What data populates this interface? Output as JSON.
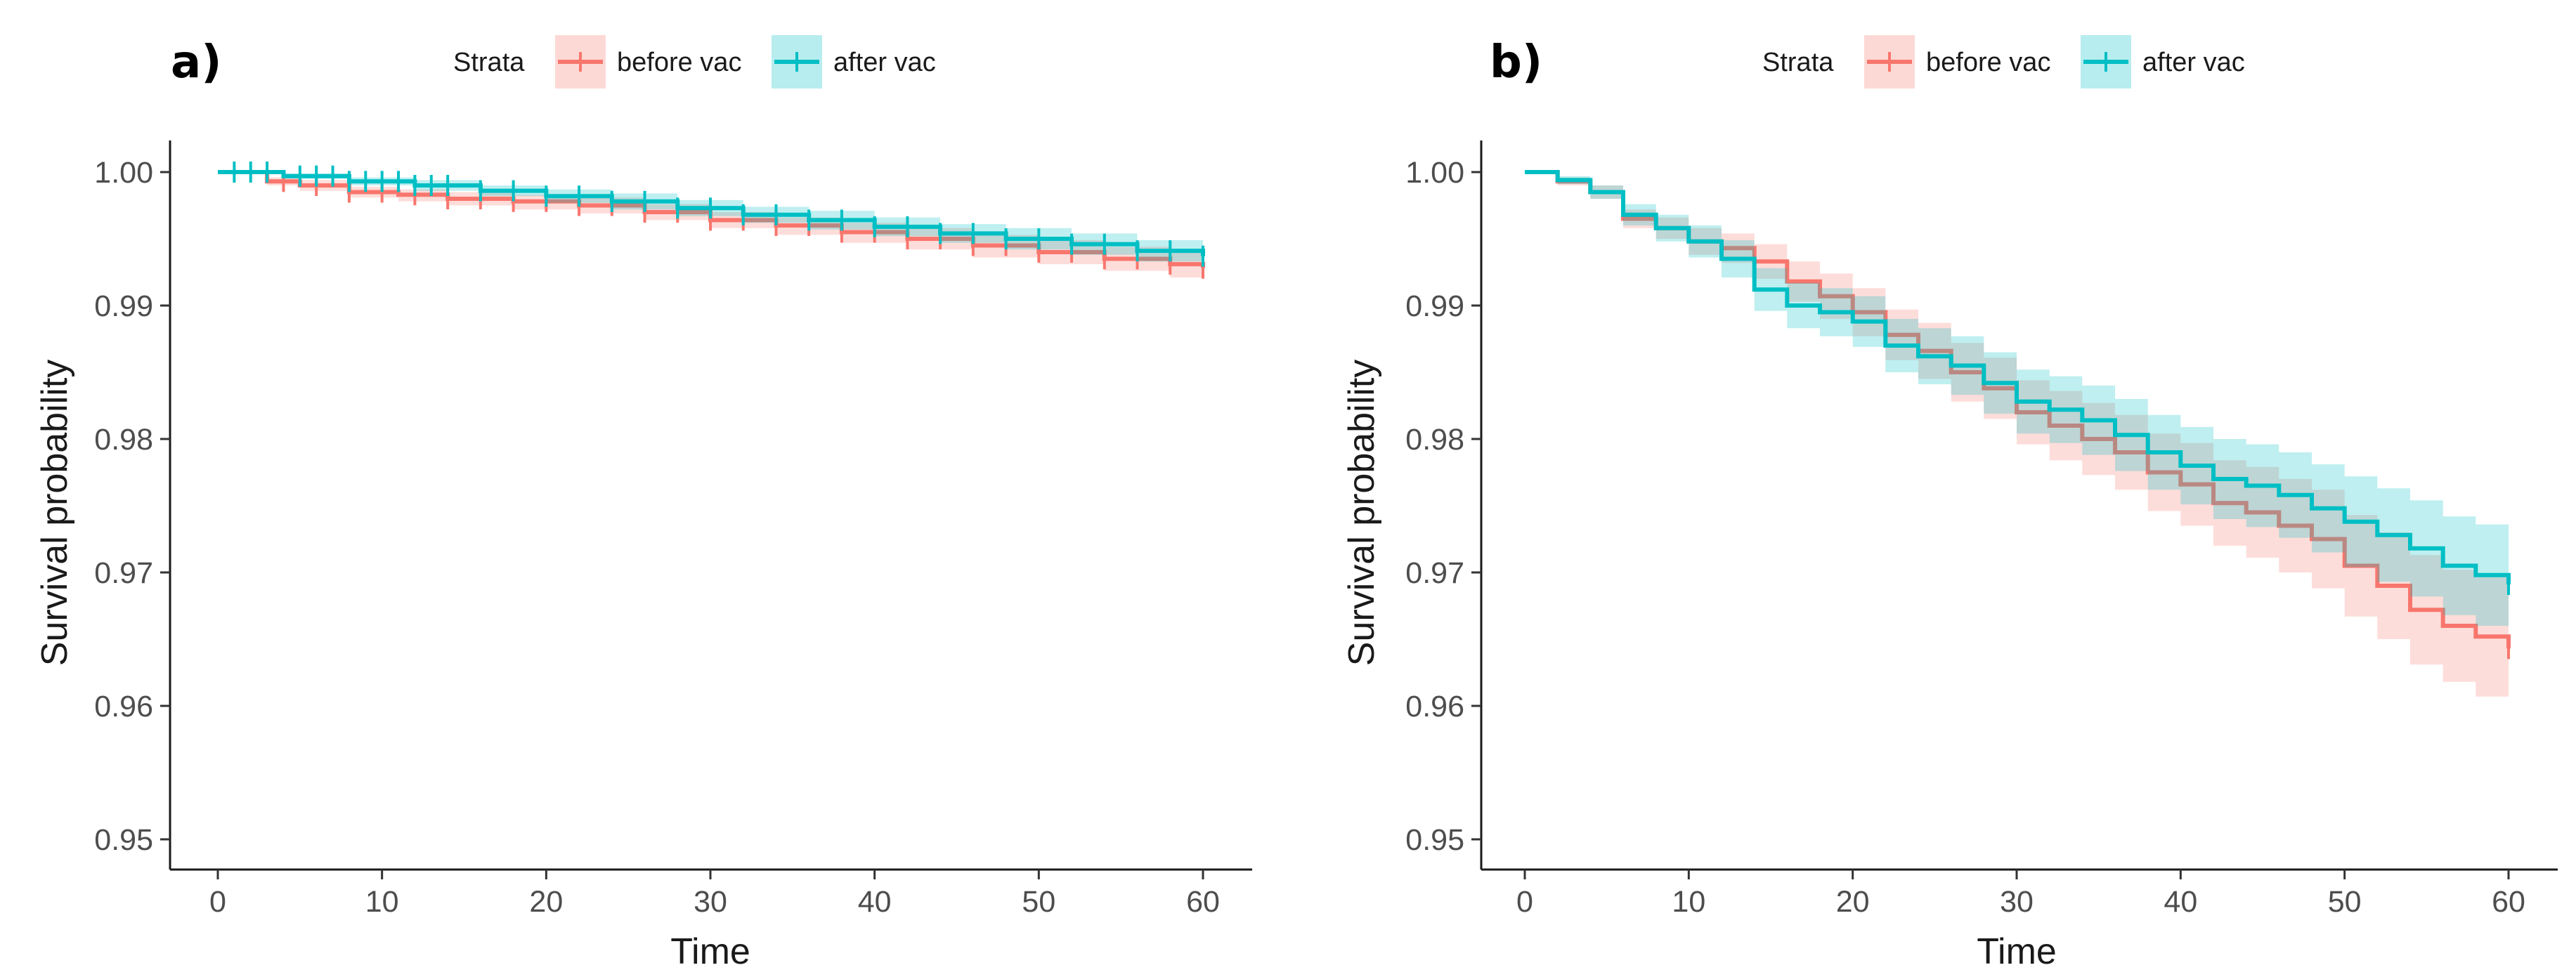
{
  "colors": {
    "before": "#F8766D",
    "after": "#00BFC4",
    "before_band": "#F8766D",
    "after_band": "#00BFC4"
  },
  "legend": {
    "title": "Strata",
    "before_label": "before vac",
    "after_label": "after vac"
  },
  "chart_data": [
    {
      "panel": "a)",
      "type": "line",
      "xlabel": "Time",
      "ylabel": "Survival probability",
      "xlim": [
        0,
        60
      ],
      "ylim": [
        0.95,
        1.0
      ],
      "xticks": [
        0,
        10,
        20,
        30,
        40,
        50,
        60
      ],
      "yticks": [
        0.95,
        0.96,
        0.97,
        0.98,
        0.99,
        1.0
      ],
      "ytick_labels": [
        "0.95",
        "0.96",
        "0.97",
        "0.98",
        "0.99",
        "1.00"
      ],
      "grid": false,
      "legend_position": "top",
      "series": [
        {
          "name": "before vac",
          "x": [
            0,
            3,
            5,
            8,
            11,
            14,
            18,
            22,
            26,
            30,
            34,
            38,
            42,
            46,
            50,
            54,
            58,
            60
          ],
          "y": [
            1.0,
            0.9993,
            0.999,
            0.9985,
            0.9983,
            0.998,
            0.9978,
            0.9975,
            0.997,
            0.9964,
            0.996,
            0.9955,
            0.995,
            0.9945,
            0.994,
            0.9935,
            0.9931,
            0.9928
          ],
          "lower": [
            1.0,
            0.999,
            0.9986,
            0.9981,
            0.9978,
            0.9975,
            0.9972,
            0.9969,
            0.9964,
            0.9958,
            0.9953,
            0.9947,
            0.9942,
            0.9936,
            0.9931,
            0.9926,
            0.9921,
            0.9918
          ],
          "upper": [
            1.0,
            0.9996,
            0.9994,
            0.9989,
            0.9987,
            0.9985,
            0.9983,
            0.9981,
            0.9976,
            0.997,
            0.9966,
            0.9962,
            0.9958,
            0.9953,
            0.9949,
            0.9944,
            0.994,
            0.9938
          ],
          "censor_x": [
            4,
            6,
            8,
            10,
            12,
            14,
            16,
            18,
            20,
            22,
            24,
            26,
            28,
            30,
            32,
            34,
            36,
            38,
            40,
            42,
            44,
            46,
            48,
            50,
            52,
            54,
            56,
            58,
            60
          ]
        },
        {
          "name": "after vac",
          "x": [
            0,
            4,
            8,
            12,
            16,
            20,
            24,
            28,
            32,
            36,
            40,
            44,
            48,
            52,
            56,
            60
          ],
          "y": [
            1.0,
            0.9997,
            0.9993,
            0.999,
            0.9986,
            0.9982,
            0.9978,
            0.9973,
            0.9968,
            0.9964,
            0.9959,
            0.9954,
            0.995,
            0.9946,
            0.9941,
            0.9937
          ],
          "lower": [
            1.0,
            0.9995,
            0.999,
            0.9986,
            0.9982,
            0.9977,
            0.9972,
            0.9967,
            0.9962,
            0.9957,
            0.9952,
            0.9947,
            0.9942,
            0.9938,
            0.9933,
            0.9928
          ],
          "upper": [
            1.0,
            0.9999,
            0.9996,
            0.9994,
            0.999,
            0.9987,
            0.9984,
            0.9979,
            0.9974,
            0.9971,
            0.9966,
            0.9961,
            0.9958,
            0.9954,
            0.9949,
            0.9946
          ],
          "censor_x": [
            1,
            2,
            3,
            5,
            6,
            7,
            8,
            9,
            10,
            11,
            12,
            13,
            14,
            16,
            18,
            20,
            22,
            24,
            26,
            28,
            30,
            32,
            34,
            36,
            38,
            40,
            42,
            44,
            46,
            48,
            50,
            52,
            54,
            56,
            58,
            60
          ]
        }
      ]
    },
    {
      "panel": "b)",
      "type": "line",
      "xlabel": "Time",
      "ylabel": "Survival probability",
      "xlim": [
        0,
        60
      ],
      "ylim": [
        0.95,
        1.0
      ],
      "xticks": [
        0,
        10,
        20,
        30,
        40,
        50,
        60
      ],
      "yticks": [
        0.95,
        0.96,
        0.97,
        0.98,
        0.99,
        1.0
      ],
      "ytick_labels": [
        "0.95",
        "0.96",
        "0.97",
        "0.98",
        "0.99",
        "1.00"
      ],
      "grid": false,
      "legend_position": "top",
      "series": [
        {
          "name": "before vac",
          "x": [
            0,
            2,
            4,
            6,
            8,
            10,
            12,
            14,
            16,
            18,
            20,
            22,
            24,
            26,
            28,
            30,
            32,
            34,
            36,
            38,
            40,
            42,
            44,
            46,
            48,
            50,
            52,
            54,
            56,
            58,
            60
          ],
          "y": [
            1.0,
            0.9993,
            0.9985,
            0.9965,
            0.9958,
            0.9948,
            0.9943,
            0.9933,
            0.9918,
            0.9907,
            0.9895,
            0.9878,
            0.9866,
            0.985,
            0.9838,
            0.982,
            0.981,
            0.98,
            0.979,
            0.9775,
            0.9766,
            0.9752,
            0.9745,
            0.9735,
            0.9725,
            0.9705,
            0.969,
            0.9672,
            0.966,
            0.9652,
            0.9643
          ],
          "lower": [
            1.0,
            0.999,
            0.998,
            0.9958,
            0.995,
            0.9938,
            0.9932,
            0.992,
            0.9903,
            0.989,
            0.9877,
            0.9859,
            0.9845,
            0.9828,
            0.9815,
            0.9796,
            0.9784,
            0.9773,
            0.9762,
            0.9746,
            0.9735,
            0.972,
            0.9711,
            0.97,
            0.9688,
            0.9667,
            0.965,
            0.9631,
            0.9618,
            0.9607,
            0.9597
          ],
          "upper": [
            1.0,
            0.9996,
            0.999,
            0.9972,
            0.9966,
            0.9958,
            0.9954,
            0.9946,
            0.9933,
            0.9924,
            0.9913,
            0.9897,
            0.9887,
            0.9872,
            0.9861,
            0.9844,
            0.9836,
            0.9827,
            0.9818,
            0.9804,
            0.9797,
            0.9784,
            0.9779,
            0.977,
            0.9762,
            0.9743,
            0.973,
            0.9713,
            0.9702,
            0.9697,
            0.9689
          ],
          "censor_x": [
            60
          ]
        },
        {
          "name": "after vac",
          "x": [
            0,
            2,
            4,
            6,
            8,
            10,
            12,
            14,
            16,
            18,
            20,
            22,
            24,
            26,
            28,
            30,
            32,
            34,
            36,
            38,
            40,
            42,
            44,
            46,
            48,
            50,
            52,
            54,
            56,
            58,
            60
          ],
          "y": [
            1.0,
            0.9994,
            0.9985,
            0.9968,
            0.9958,
            0.9948,
            0.9935,
            0.9912,
            0.99,
            0.9895,
            0.9888,
            0.987,
            0.9862,
            0.9855,
            0.9842,
            0.9828,
            0.9822,
            0.9814,
            0.9803,
            0.979,
            0.978,
            0.977,
            0.9765,
            0.9758,
            0.9748,
            0.9738,
            0.9728,
            0.9718,
            0.9705,
            0.9698,
            0.9691
          ],
          "lower": [
            1.0,
            0.9991,
            0.998,
            0.996,
            0.9948,
            0.9936,
            0.9921,
            0.9896,
            0.9883,
            0.9877,
            0.9869,
            0.985,
            0.9841,
            0.9833,
            0.9819,
            0.9804,
            0.9797,
            0.9788,
            0.9776,
            0.9762,
            0.9751,
            0.974,
            0.9734,
            0.9726,
            0.9715,
            0.9704,
            0.9693,
            0.9682,
            0.9668,
            0.966,
            0.9652
          ],
          "upper": [
            1.0,
            0.9997,
            0.999,
            0.9976,
            0.9968,
            0.996,
            0.9949,
            0.9928,
            0.9917,
            0.9913,
            0.9907,
            0.989,
            0.9883,
            0.9877,
            0.9865,
            0.9852,
            0.9847,
            0.984,
            0.983,
            0.9818,
            0.9809,
            0.98,
            0.9796,
            0.979,
            0.9781,
            0.9772,
            0.9763,
            0.9754,
            0.9742,
            0.9736,
            0.973
          ],
          "censor_x": [
            60
          ]
        }
      ]
    }
  ]
}
